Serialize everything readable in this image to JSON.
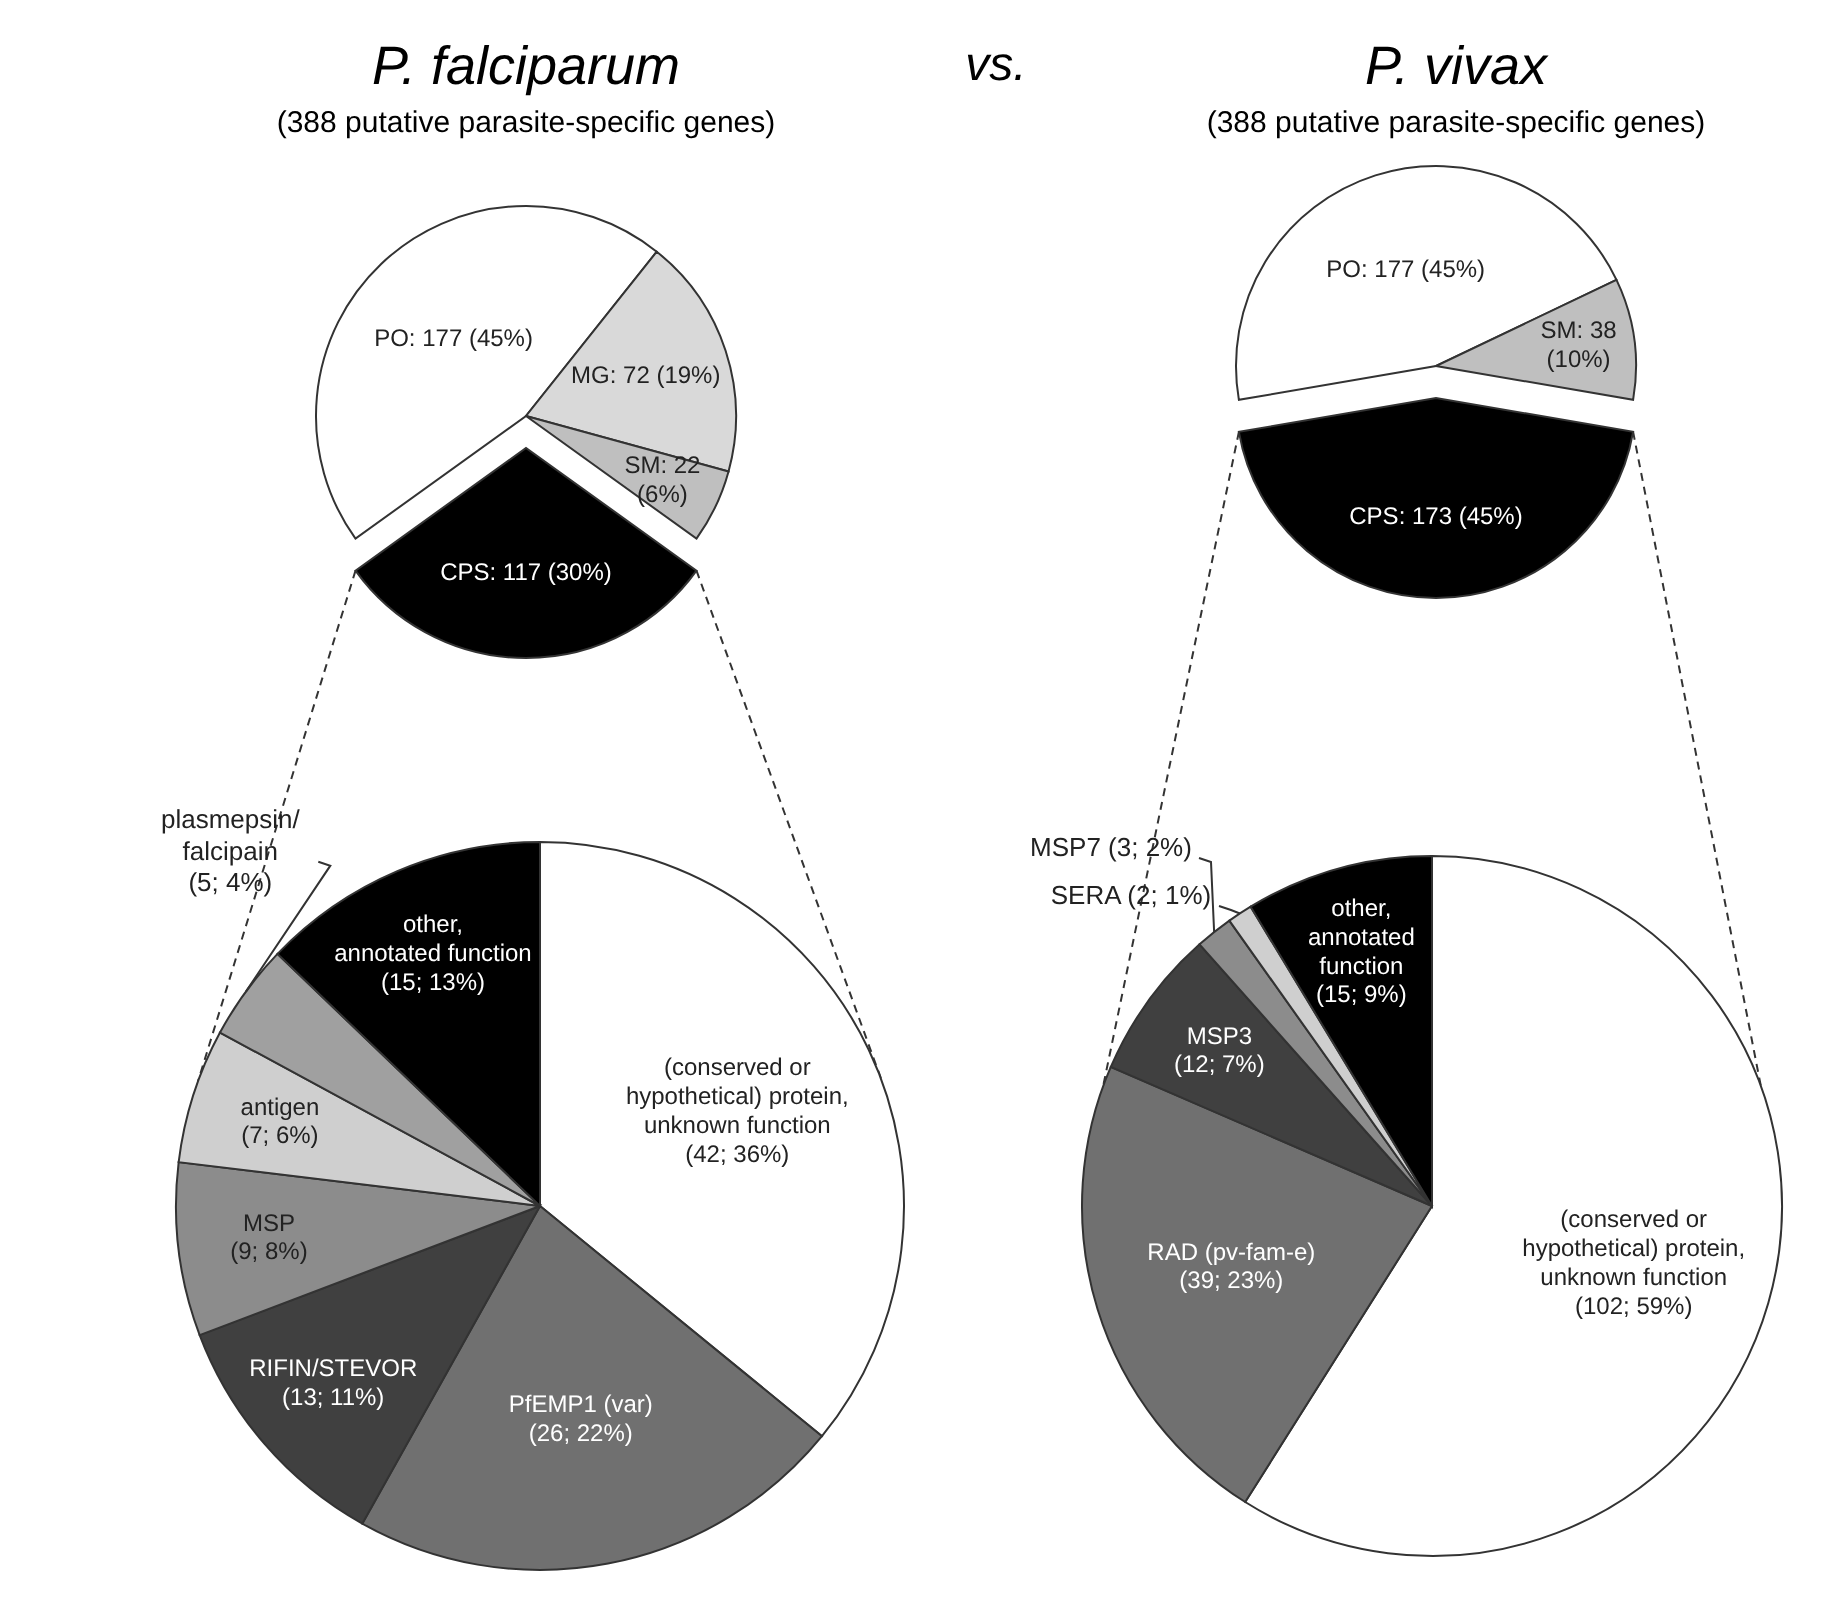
{
  "chart_data": [
    {
      "type": "pie",
      "title": "P. falciparum",
      "subtitle": "(388 putative parasite-specific genes)",
      "annotations": [
        "vs."
      ],
      "categories": [
        "PO: 177 (45%)",
        "MG: 72 (19%)",
        "SM: 22\n(6%)",
        "CPS: 117 (30%)"
      ],
      "values": [
        177,
        72,
        22,
        117
      ],
      "colors": [
        "#ffffff",
        "#d9d9d9",
        "#bfbfbf",
        "#000000"
      ]
    },
    {
      "type": "pie",
      "title": "P. vivax",
      "subtitle": "(388 putative parasite-specific genes)",
      "categories": [
        "PO: 177 (45%)",
        "SM: 38\n(10%)",
        "CPS: 173 (45%)"
      ],
      "values": [
        177,
        38,
        173
      ],
      "colors": [
        "#ffffff",
        "#bfbfbf",
        "#000000"
      ]
    },
    {
      "type": "pie",
      "categories": [
        "(conserved or\nhypothetical) protein,\nunknown function\n(42; 36%)",
        "PfEMP1 (var)\n(26; 22%)",
        "RIFIN/STEVOR\n(13; 11%)",
        "MSP\n(9; 8%)",
        "antigen\n(7; 6%)",
        "plasmepsin/\nfalcipain\n(5; 4%)",
        "other,\nannotated function\n(15; 13%)"
      ],
      "values": [
        42,
        26,
        13,
        9,
        7,
        5,
        15
      ],
      "colors": [
        "#ffffff",
        "#707070",
        "#404040",
        "#8c8c8c",
        "#cfcfcf",
        "#a0a0a0",
        "#000000"
      ]
    },
    {
      "type": "pie",
      "categories": [
        "(conserved or\nhypothetical) protein,\nunknown function\n(102; 59%)",
        "RAD (pv-fam-e)\n(39; 23%)",
        "MSP3\n(12; 7%)",
        "MSP7 (3; 2%)",
        "SERA (2; 1%)",
        "other,\nannotated\nfunction\n(15; 9%)"
      ],
      "values": [
        102,
        39,
        12,
        3,
        2,
        15
      ],
      "colors": [
        "#ffffff",
        "#707070",
        "#404040",
        "#8c8c8c",
        "#cfcfcf",
        "#000000"
      ]
    }
  ]
}
